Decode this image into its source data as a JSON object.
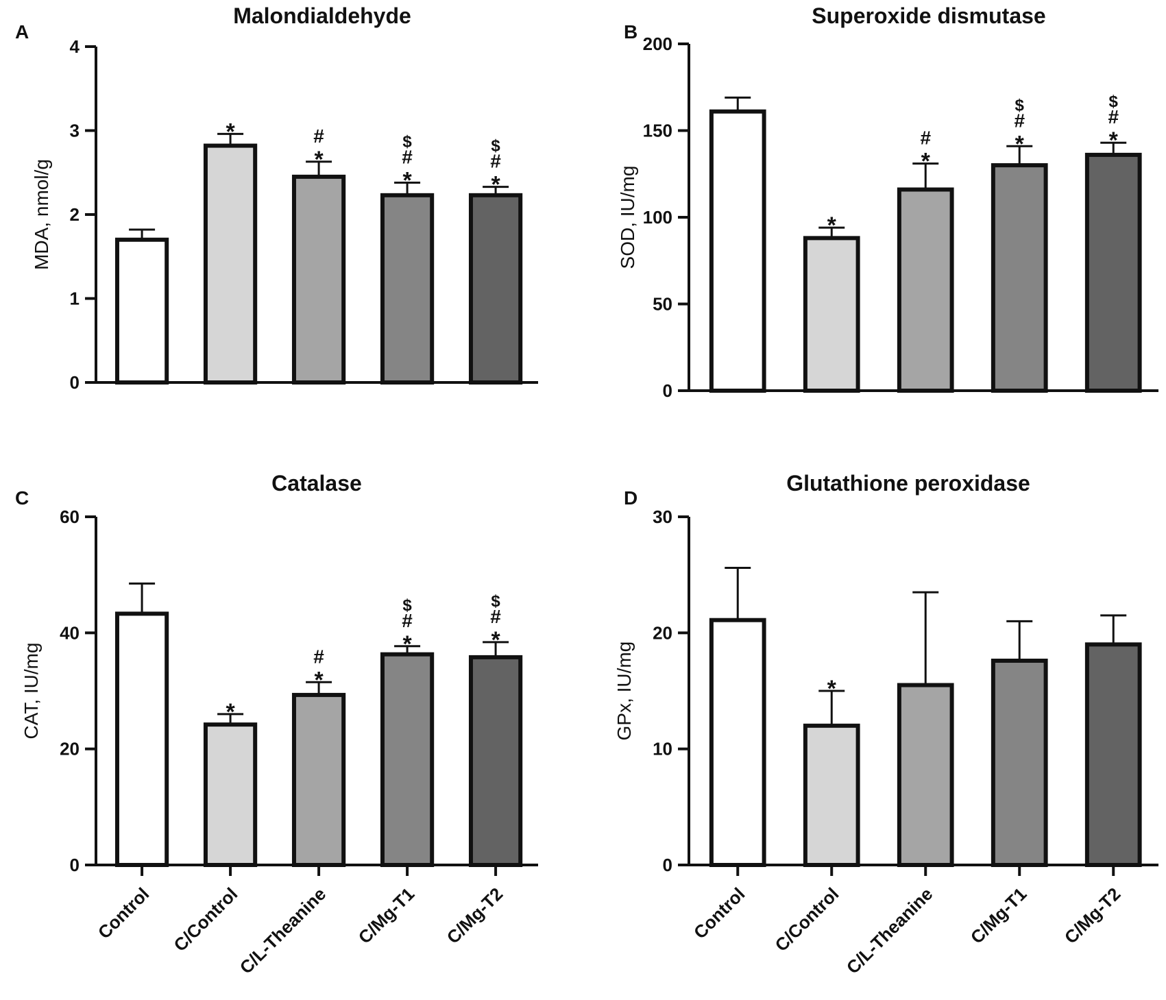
{
  "chart_data": [
    {
      "panel": "A",
      "type": "bar",
      "title": "Malondialdehyde",
      "xlabel": "",
      "ylabel": "MDA, nmol/g",
      "ylim": [
        0,
        4
      ],
      "yticks": [
        0,
        1,
        2,
        3,
        4
      ],
      "categories": [
        "Control",
        "C/Control",
        "C/L-Theanine",
        "C/Mg-T1",
        "C/Mg-T2"
      ],
      "values": [
        1.7,
        2.82,
        2.45,
        2.23,
        2.23
      ],
      "errors": [
        0.12,
        0.14,
        0.18,
        0.15,
        0.1
      ],
      "significance": [
        [],
        [
          "*"
        ],
        [
          "*",
          "#"
        ],
        [
          "*",
          "#",
          "$"
        ],
        [
          "*",
          "#",
          "$"
        ]
      ]
    },
    {
      "panel": "B",
      "type": "bar",
      "title": "Superoxide dismutase",
      "xlabel": "",
      "ylabel": "SOD, IU/mg",
      "ylim": [
        0,
        200
      ],
      "yticks": [
        0,
        50,
        100,
        150,
        200
      ],
      "categories": [
        "Control",
        "C/Control",
        "C/L-Theanine",
        "C/Mg-T1",
        "C/Mg-T2"
      ],
      "values": [
        161,
        88,
        116,
        130,
        136
      ],
      "errors": [
        8,
        6,
        15,
        11,
        7
      ],
      "significance": [
        [],
        [
          "*"
        ],
        [
          "*",
          "#"
        ],
        [
          "*",
          "#",
          "$"
        ],
        [
          "*",
          "#",
          "$"
        ]
      ]
    },
    {
      "panel": "C",
      "type": "bar",
      "title": "Catalase",
      "xlabel": "",
      "ylabel": "CAT, IU/mg",
      "ylim": [
        0,
        60
      ],
      "yticks": [
        0,
        20,
        40,
        60
      ],
      "categories": [
        "Control",
        "C/Control",
        "C/L-Theanine",
        "C/Mg-T1",
        "C/Mg-T2"
      ],
      "values": [
        43.3,
        24.2,
        29.3,
        36.3,
        35.8
      ],
      "errors": [
        5.2,
        1.8,
        2.2,
        1.4,
        2.6
      ],
      "significance": [
        [],
        [
          "*"
        ],
        [
          "*",
          "#"
        ],
        [
          "*",
          "#",
          "$"
        ],
        [
          "*",
          "#",
          "$"
        ]
      ]
    },
    {
      "panel": "D",
      "type": "bar",
      "title": "Glutathione peroxidase",
      "xlabel": "",
      "ylabel": "GPx, IU/mg",
      "ylim": [
        0,
        30
      ],
      "yticks": [
        0,
        10,
        20,
        30
      ],
      "categories": [
        "Control",
        "C/Control",
        "C/L-Theanine",
        "C/Mg-T1",
        "C/Mg-T2"
      ],
      "values": [
        21.1,
        12,
        15.5,
        17.6,
        19
      ],
      "errors": [
        4.5,
        3,
        8,
        3.4,
        2.5
      ],
      "significance": [
        [],
        [
          "*"
        ],
        [],
        [],
        []
      ]
    }
  ],
  "bar_colors": [
    "#ffffff",
    "#d6d6d6",
    "#a5a5a5",
    "#858585",
    "#636363"
  ],
  "axis_color": "#111111"
}
